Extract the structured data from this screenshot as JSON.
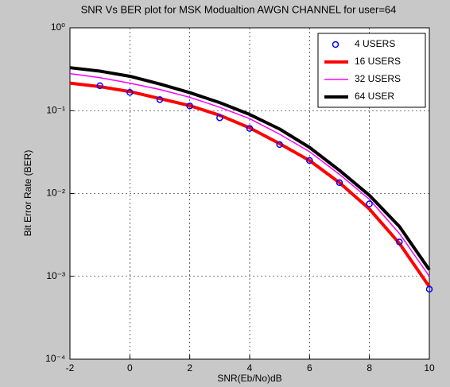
{
  "chart_data": {
    "type": "line",
    "title": "SNR Vs BER plot for MSK Modualtion AWGN CHANNEL for user=64",
    "xlabel": "SNR(Eb/No)dB",
    "ylabel": "Bit Error Rate (BER)",
    "x": [
      -2,
      -1,
      0,
      1,
      2,
      3,
      4,
      5,
      6,
      7,
      8,
      9,
      10
    ],
    "xlim": [
      -2,
      10
    ],
    "xticks": [
      -2,
      0,
      2,
      4,
      6,
      8,
      10
    ],
    "ylim": [
      0.0001,
      1
    ],
    "log_y": true,
    "yticks": [
      {
        "value": 0.0001,
        "label": "10⁻⁴"
      },
      {
        "value": 0.001,
        "label": "10⁻³"
      },
      {
        "value": 0.01,
        "label": "10⁻²"
      },
      {
        "value": 0.1,
        "label": "10⁻¹"
      },
      {
        "value": 1,
        "label": "10⁰"
      }
    ],
    "grid": true,
    "legend": "upper right",
    "series": [
      {
        "name": "4 USERS",
        "color": "#0000ff",
        "style": "marker",
        "values": [
          null,
          0.2,
          0.166,
          0.136,
          0.114,
          0.082,
          0.061,
          0.039,
          0.025,
          0.0135,
          0.0075,
          0.0026,
          0.0007
        ]
      },
      {
        "name": "16 USERS",
        "color": "#ff0000",
        "style": "line",
        "width": 4,
        "values": [
          0.215,
          0.195,
          0.17,
          0.14,
          0.115,
          0.088,
          0.062,
          0.04,
          0.025,
          0.0135,
          0.0065,
          0.0025,
          0.00075
        ]
      },
      {
        "name": "32 USERS",
        "color": "#ff00ff",
        "style": "line",
        "width": 1.5,
        "values": [
          0.28,
          0.25,
          0.215,
          0.18,
          0.145,
          0.11,
          0.08,
          0.052,
          0.032,
          0.017,
          0.0085,
          0.0033,
          0.001
        ]
      },
      {
        "name": "64 USER",
        "color": "#000000",
        "style": "line",
        "width": 4,
        "values": [
          0.33,
          0.3,
          0.26,
          0.21,
          0.165,
          0.125,
          0.09,
          0.06,
          0.036,
          0.019,
          0.0095,
          0.004,
          0.0012
        ]
      }
    ]
  }
}
